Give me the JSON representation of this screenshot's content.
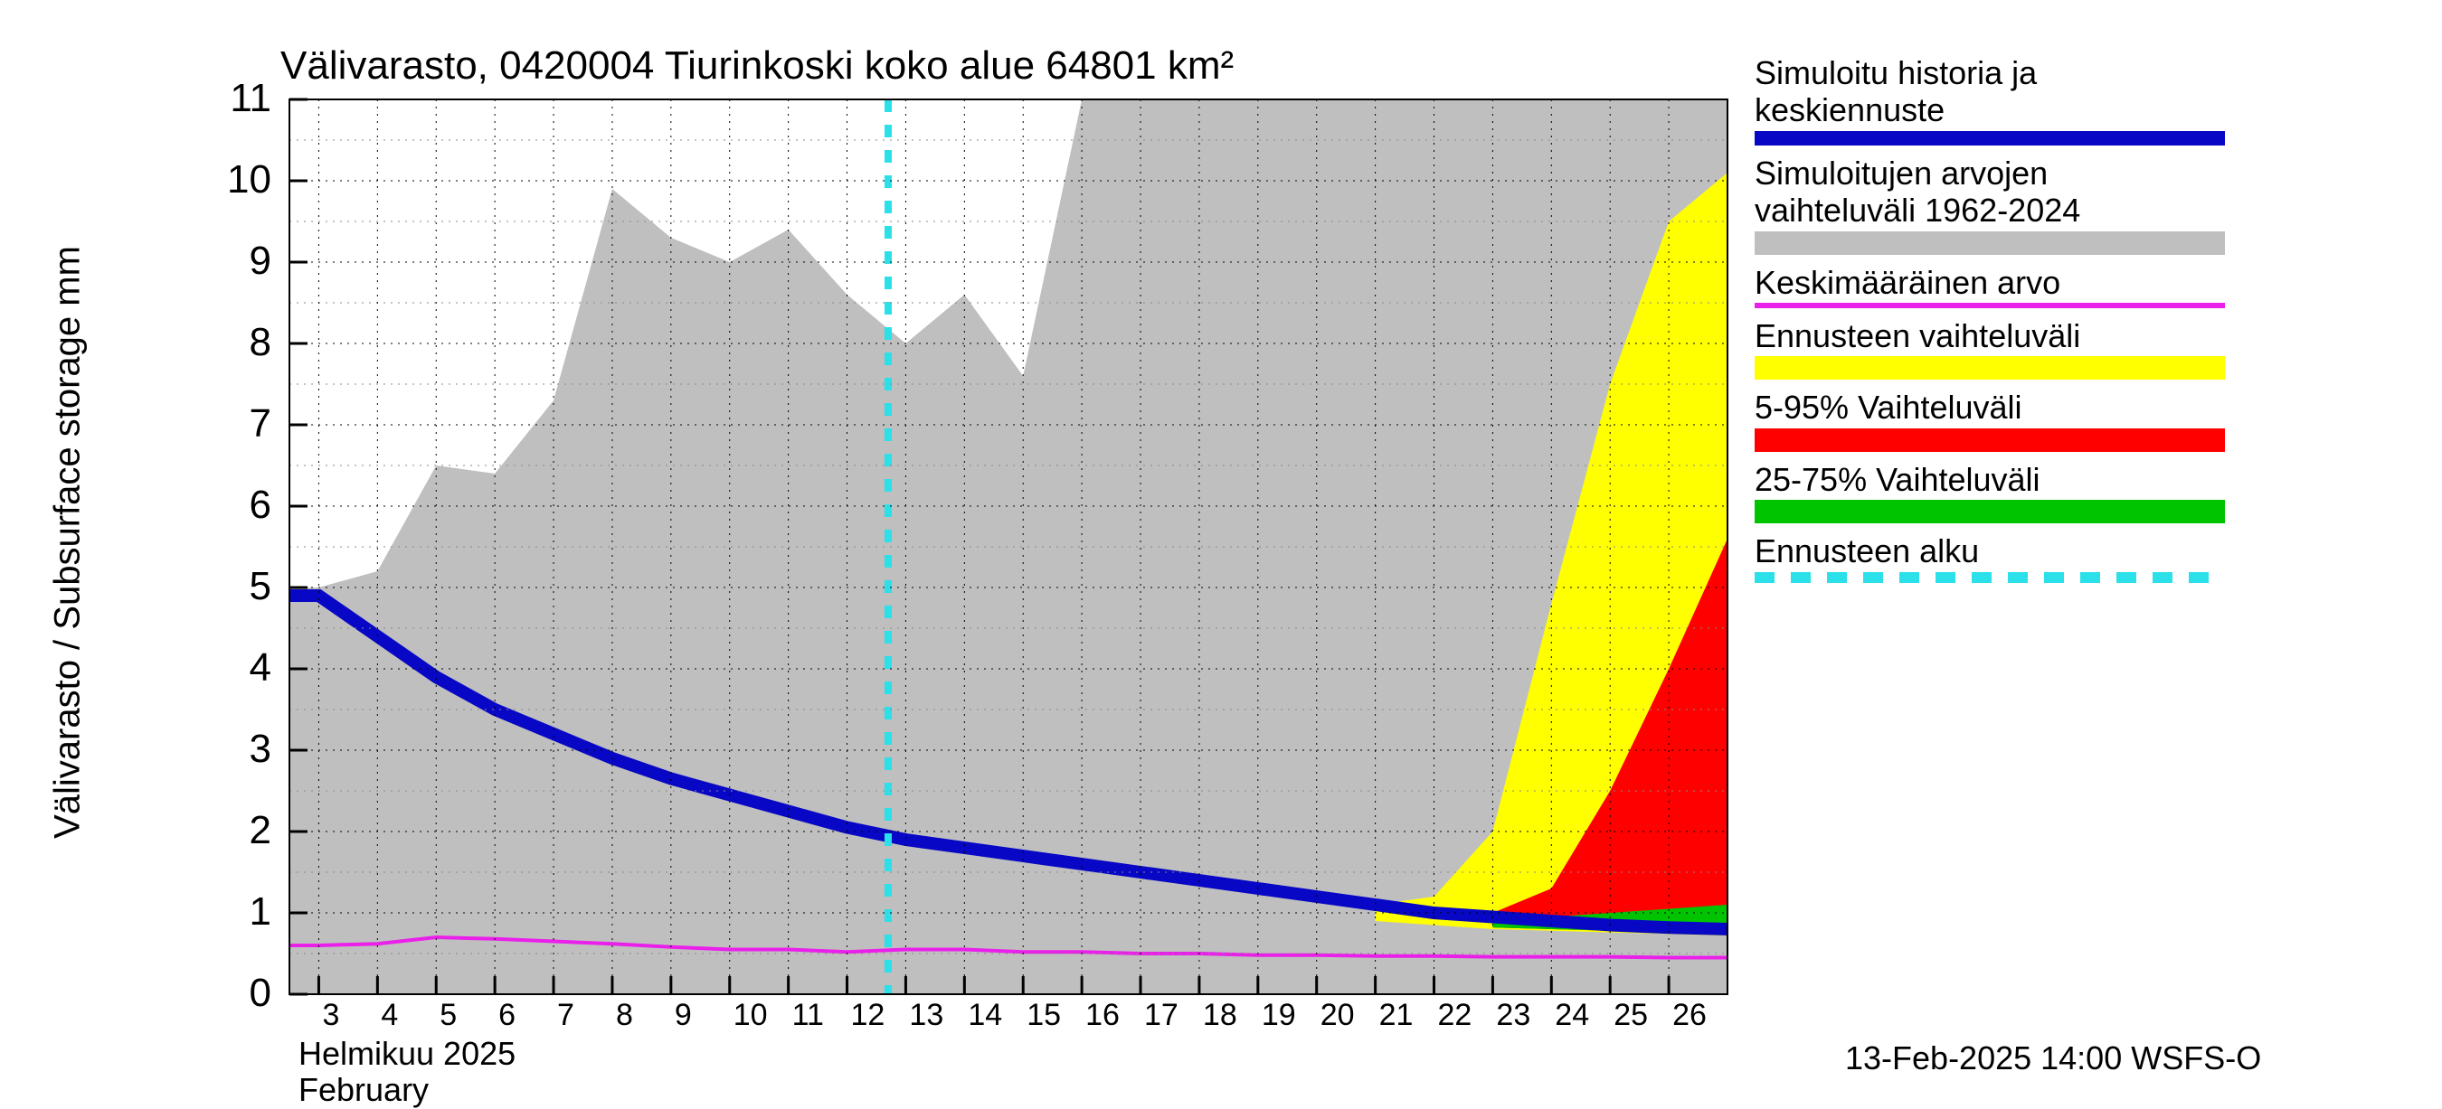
{
  "chart": {
    "type": "area-line-forecast",
    "title": "Välivarasto, 0420004 Tiurinkoski koko alue 64801 km²",
    "title_fontsize": 44,
    "ylabel": "Välivarasto / Subsurface storage  mm",
    "ylabel_fontsize": 40,
    "background_color": "#ffffff",
    "grid_color_major": "#000000",
    "grid_color_minor": "#8a8a8a",
    "grid_dash": "3,5",
    "ylim": [
      0,
      11
    ],
    "yticks": [
      0,
      1,
      2,
      3,
      4,
      5,
      6,
      7,
      8,
      9,
      10,
      11
    ],
    "xlim_days": [
      "2025-02-03",
      "2025-02-27"
    ],
    "xtick_days": [
      3,
      4,
      5,
      6,
      7,
      8,
      9,
      10,
      11,
      12,
      13,
      14,
      15,
      16,
      17,
      18,
      19,
      20,
      21,
      22,
      23,
      24,
      25,
      26
    ],
    "xlabel_month_fi": "Helmikuu  2025",
    "xlabel_month_en": "February",
    "forecast_start_day": 12.7,
    "colors": {
      "central_blue": "#0707c5",
      "hist_grey": "#bfbfbf",
      "avg_magenta": "#ea1fea",
      "forecast_yellow": "#ffff00",
      "range_5_95_red": "#ff0000",
      "range_25_75_green": "#00c400",
      "forecast_start_cyan": "#2be0e8"
    },
    "series": {
      "hist_grey_upper": [
        5.0,
        5.2,
        6.5,
        6.4,
        7.3,
        9.9,
        9.3,
        9.0,
        9.4,
        8.6,
        8.0,
        8.6,
        7.6,
        11.1,
        11.1,
        11.1,
        11.1,
        11.1,
        11.1,
        11.1,
        11.1,
        11.1,
        11.1,
        11.1
      ],
      "hist_grey_lower": [
        0,
        0,
        0,
        0,
        0,
        0,
        0,
        0,
        0,
        0,
        0,
        0,
        0,
        0,
        0,
        0,
        0,
        0,
        0,
        0,
        0,
        0,
        0,
        0
      ],
      "forecast_yellow_upper": [
        null,
        null,
        null,
        null,
        null,
        null,
        null,
        null,
        null,
        null,
        null,
        null,
        null,
        null,
        null,
        null,
        null,
        null,
        1.1,
        1.2,
        2.0,
        4.8,
        7.5,
        9.5,
        10.1,
        9.8
      ],
      "forecast_yellow_lower": [
        null,
        null,
        null,
        null,
        null,
        null,
        null,
        null,
        null,
        null,
        null,
        null,
        null,
        null,
        null,
        null,
        null,
        null,
        0.9,
        0.85,
        0.8,
        0.78,
        0.76,
        0.74,
        0.72,
        0.7
      ],
      "range_5_95_red_upper": [
        null,
        null,
        null,
        null,
        null,
        null,
        null,
        null,
        null,
        null,
        null,
        null,
        null,
        null,
        null,
        null,
        null,
        null,
        null,
        null,
        1.0,
        1.3,
        2.5,
        4.0,
        5.6,
        6.0
      ],
      "range_5_95_red_lower": [
        null,
        null,
        null,
        null,
        null,
        null,
        null,
        null,
        null,
        null,
        null,
        null,
        null,
        null,
        null,
        null,
        null,
        null,
        null,
        null,
        0.82,
        0.8,
        0.78,
        0.76,
        0.74,
        0.72
      ],
      "range_25_75_green_upper": [
        null,
        null,
        null,
        null,
        null,
        null,
        null,
        null,
        null,
        null,
        null,
        null,
        null,
        null,
        null,
        null,
        null,
        null,
        null,
        null,
        0.95,
        0.95,
        1.0,
        1.05,
        1.1,
        1.15
      ],
      "range_25_75_green_lower": [
        null,
        null,
        null,
        null,
        null,
        null,
        null,
        null,
        null,
        null,
        null,
        null,
        null,
        null,
        null,
        null,
        null,
        null,
        null,
        null,
        0.82,
        0.8,
        0.78,
        0.77,
        0.76,
        0.75
      ],
      "central_blue": [
        4.9,
        4.4,
        3.9,
        3.5,
        3.2,
        2.9,
        2.65,
        2.45,
        2.25,
        2.05,
        1.9,
        1.8,
        1.7,
        1.6,
        1.5,
        1.4,
        1.3,
        1.2,
        1.1,
        1.0,
        0.95,
        0.9,
        0.85,
        0.82,
        0.8,
        0.8
      ],
      "avg_magenta": [
        0.6,
        0.62,
        0.7,
        0.68,
        0.65,
        0.62,
        0.58,
        0.55,
        0.55,
        0.52,
        0.55,
        0.55,
        0.52,
        0.52,
        0.5,
        0.5,
        0.48,
        0.48,
        0.47,
        0.47,
        0.46,
        0.46,
        0.46,
        0.45,
        0.45,
        0.45
      ]
    },
    "line_widths": {
      "central_blue": 14,
      "avg_magenta": 4,
      "forecast_start_cyan": 8
    },
    "legend": [
      {
        "label": "Simuloitu historia ja\nkeskiennuste",
        "type": "line",
        "color": "#0707c5"
      },
      {
        "label": "Simuloitujen arvojen\nvaihteluväli 1962-2024",
        "type": "fill",
        "color": "#bfbfbf"
      },
      {
        "label": "Keskimääräinen arvo",
        "type": "line",
        "color": "#ea1fea"
      },
      {
        "label": "Ennusteen vaihteluväli",
        "type": "fill",
        "color": "#ffff00"
      },
      {
        "label": "5-95% Vaihteluväli",
        "type": "fill",
        "color": "#ff0000"
      },
      {
        "label": "25-75% Vaihteluväli",
        "type": "fill",
        "color": "#00c400"
      },
      {
        "label": "Ennusteen alku",
        "type": "dash",
        "color": "#2be0e8"
      }
    ],
    "timestamp": "13-Feb-2025 14:00 WSFS-O"
  }
}
